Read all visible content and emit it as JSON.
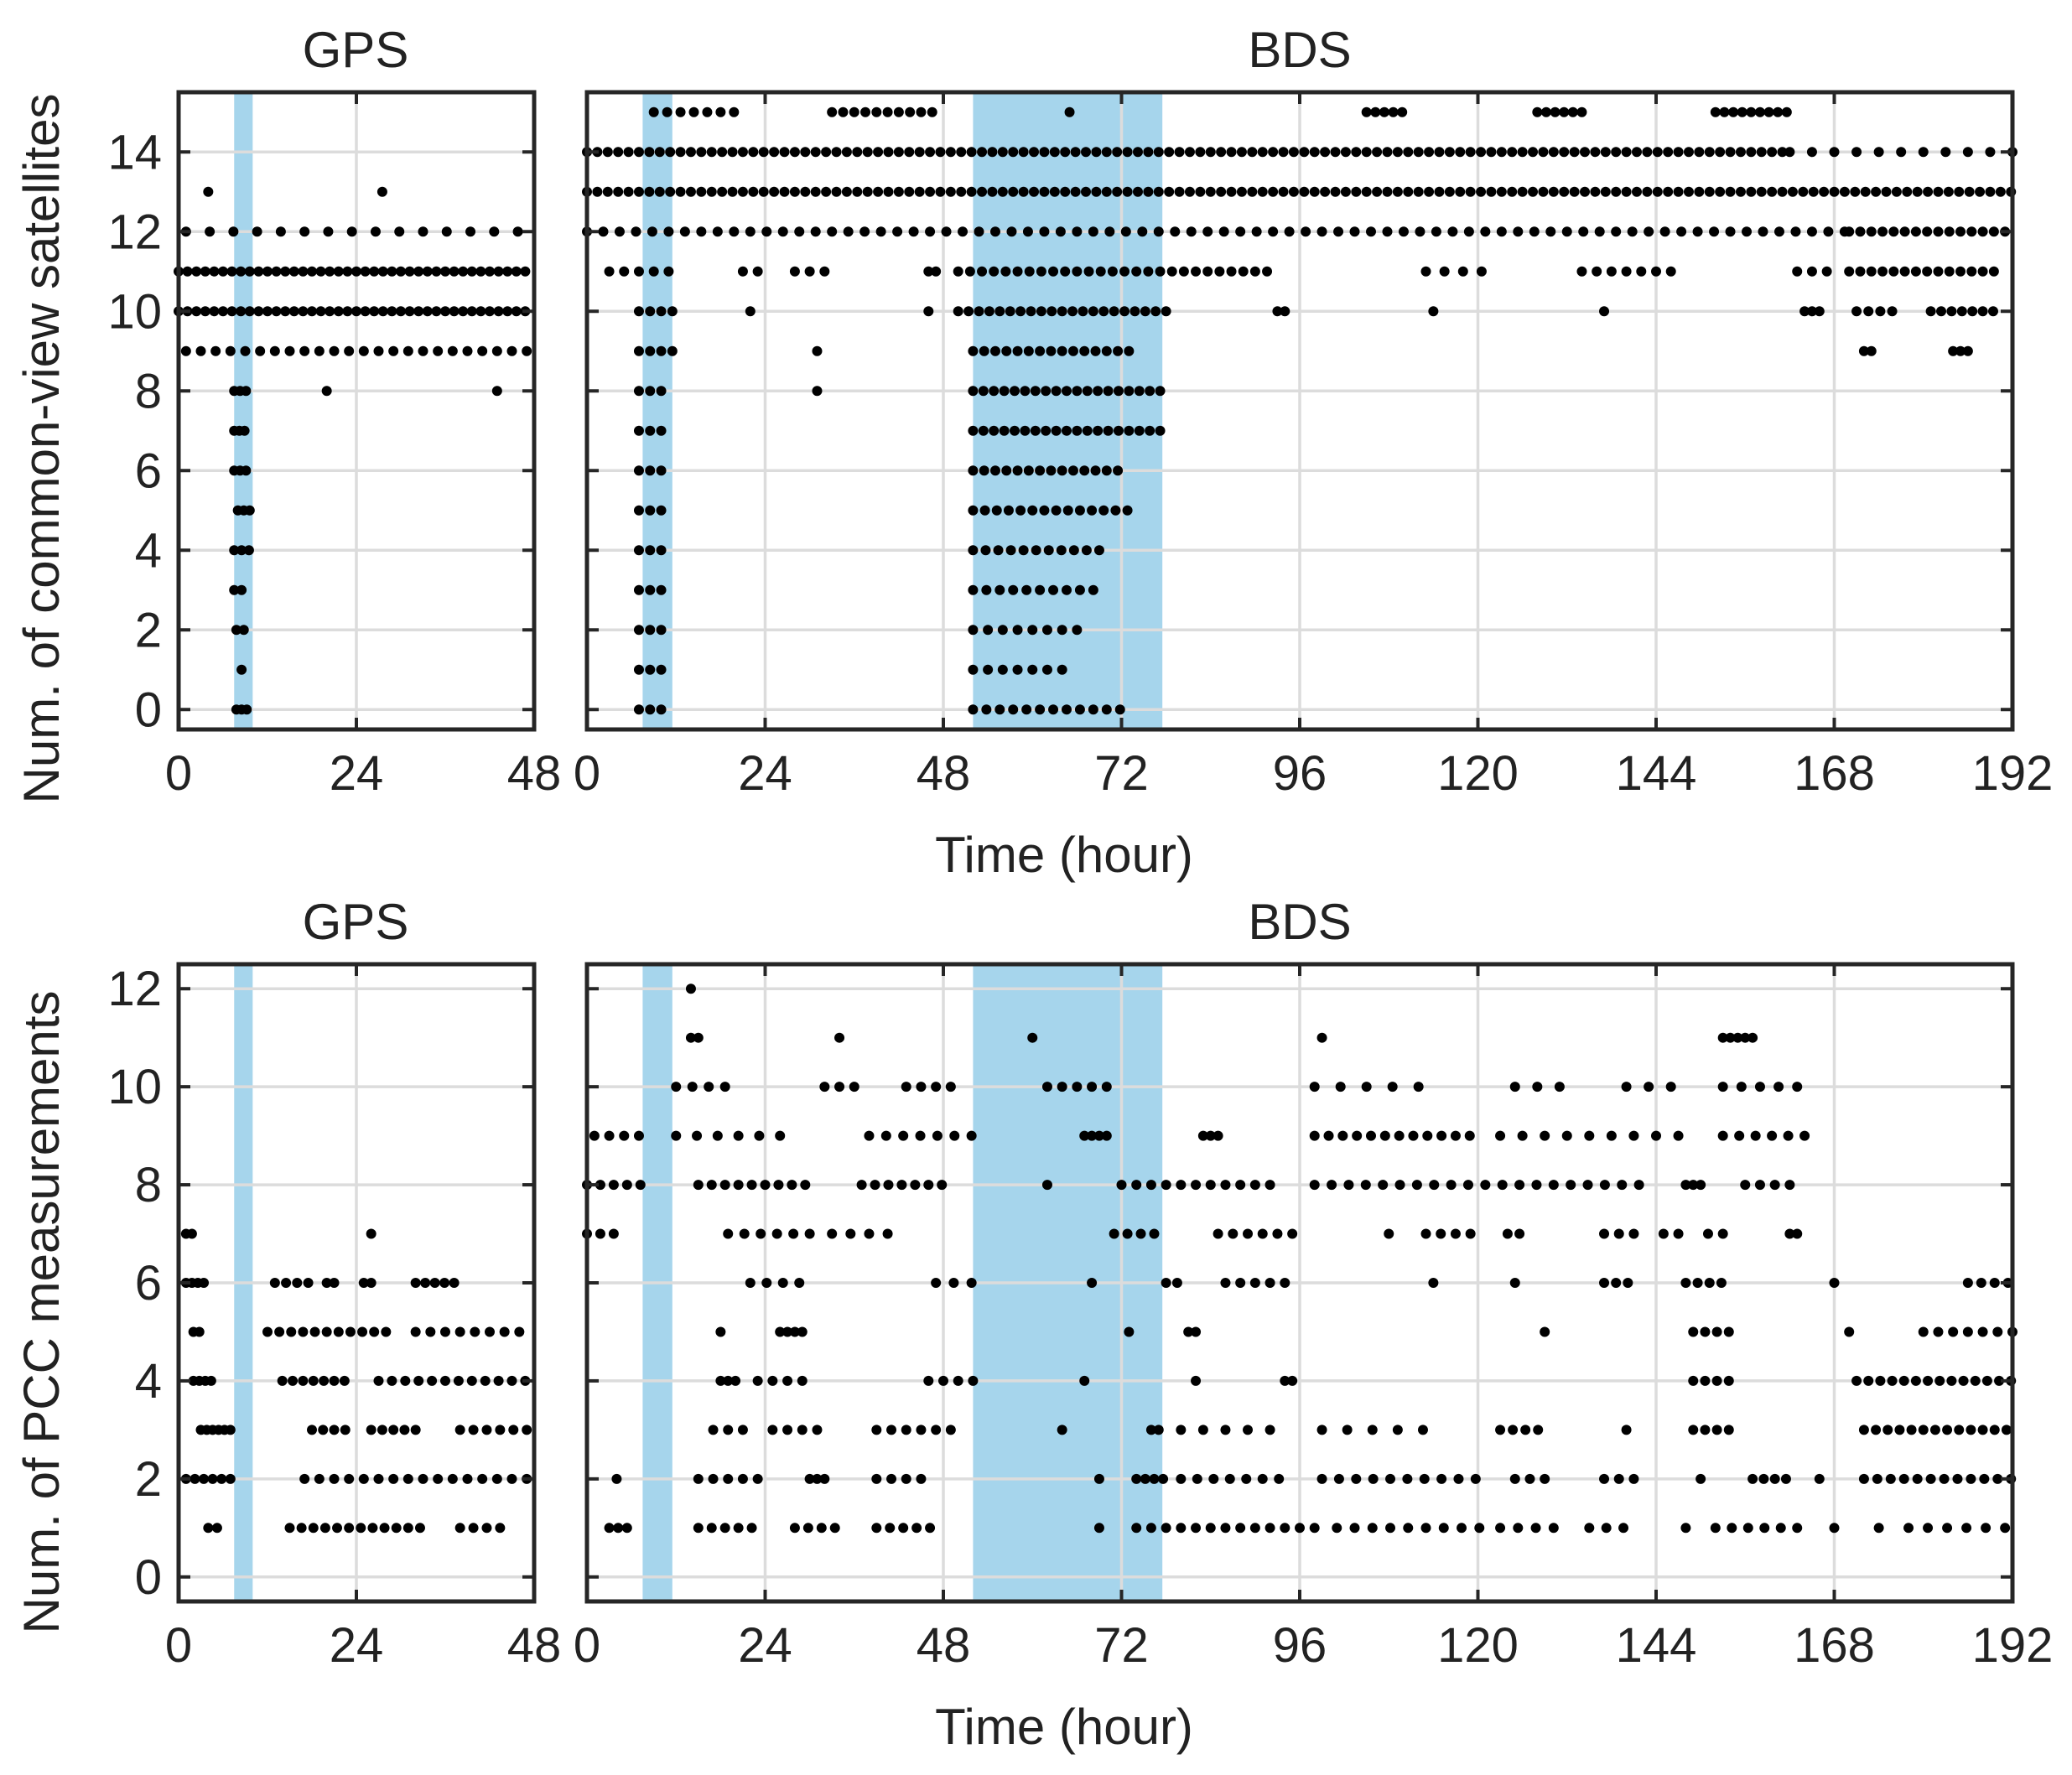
{
  "colors": {
    "highlight": "#a6d5ec",
    "dot": "#000000",
    "grid": "#dcdcdc",
    "axis": "#262626"
  },
  "rows": [
    {
      "ylabel": "Num. of common-view satellites",
      "xlabel": "Time (hour)"
    },
    {
      "ylabel": "Num. of PCC measurements",
      "xlabel": "Time (hour)"
    }
  ],
  "chart_data": [
    {
      "type": "scatter",
      "id": "sat-gps",
      "title": "GPS",
      "xlim": [
        0,
        48
      ],
      "ylim": [
        -0.5,
        15.5
      ],
      "xticks": [
        0,
        24,
        48
      ],
      "yticks": [
        0,
        2,
        4,
        6,
        8,
        10,
        12,
        14
      ],
      "highlights": [
        [
          7.5,
          10
        ]
      ],
      "dots": [
        [
          0,
          47.5,
          11,
          1.2
        ],
        [
          0,
          47.5,
          10,
          1.2
        ],
        [
          1,
          47,
          9,
          2.0
        ],
        [
          1,
          47,
          12,
          3.2
        ],
        [
          7.5,
          9.3,
          7,
          0.7
        ],
        [
          7.5,
          9.3,
          6,
          0.8
        ],
        [
          8,
          9.8,
          5,
          0.8
        ],
        [
          7.5,
          9.5,
          8,
          0.8
        ],
        [
          7.5,
          9.5,
          4,
          1.0
        ],
        [
          7.5,
          9.2,
          3,
          1.0
        ],
        [
          7.8,
          9.2,
          2,
          1.0
        ],
        [
          7.8,
          9.2,
          0,
          0.7
        ],
        [
          8.5,
          8.5,
          1,
          1.0
        ],
        [
          4,
          4,
          13,
          1
        ],
        [
          27.5,
          27.5,
          13,
          1
        ],
        [
          20,
          20,
          8,
          1
        ],
        [
          43,
          43,
          8,
          1
        ]
      ]
    },
    {
      "type": "scatter",
      "id": "sat-bds",
      "title": "BDS",
      "xlim": [
        0,
        192
      ],
      "ylim": [
        -0.5,
        15.5
      ],
      "xticks": [
        0,
        24,
        48,
        72,
        96,
        120,
        144,
        168,
        192
      ],
      "yticks": [
        0,
        2,
        4,
        6,
        8,
        10,
        12,
        14
      ],
      "highlights": [
        [
          7.5,
          11.5
        ],
        [
          52,
          77.5
        ]
      ],
      "dots": [
        [
          0,
          192,
          13,
          1.4
        ],
        [
          0,
          162,
          14,
          1.4
        ],
        [
          162,
          192,
          14,
          3
        ],
        [
          0,
          170,
          12,
          2.2
        ],
        [
          170,
          192,
          12,
          1.5
        ],
        [
          9,
          20,
          15,
          1.8
        ],
        [
          33,
          47,
          15,
          1.5
        ],
        [
          105,
          110,
          15,
          1.2
        ],
        [
          128,
          134,
          15,
          1.2
        ],
        [
          152,
          162,
          15,
          1.2
        ],
        [
          65,
          65,
          15,
          1
        ],
        [
          3,
          12,
          11,
          2
        ],
        [
          21,
          23,
          11,
          2
        ],
        [
          28,
          33,
          11,
          2
        ],
        [
          46,
          47,
          11,
          1
        ],
        [
          50,
          92,
          11,
          1.6
        ],
        [
          113,
          121,
          11,
          2.5
        ],
        [
          134,
          147,
          11,
          2
        ],
        [
          163,
          168,
          11,
          2
        ],
        [
          170,
          190,
          11,
          1.5
        ],
        [
          7,
          12,
          10,
          1.5
        ],
        [
          22,
          22,
          10,
          1
        ],
        [
          46,
          46,
          10,
          1
        ],
        [
          50,
          78,
          10,
          1.4
        ],
        [
          93,
          94,
          10,
          1
        ],
        [
          114,
          114,
          10,
          1
        ],
        [
          137,
          137,
          10,
          1
        ],
        [
          164,
          166,
          10,
          1
        ],
        [
          171,
          177,
          10,
          1.6
        ],
        [
          181,
          190,
          10,
          1.4
        ],
        [
          7,
          12,
          9,
          1.5
        ],
        [
          31,
          31,
          9,
          1
        ],
        [
          52,
          73,
          9,
          1.5
        ],
        [
          172,
          173,
          9,
          1
        ],
        [
          184,
          186,
          9,
          1
        ],
        [
          7,
          10,
          8,
          1.5
        ],
        [
          31,
          31,
          8,
          1
        ],
        [
          52,
          78,
          8,
          1.4
        ],
        [
          7,
          10,
          7,
          1.5
        ],
        [
          52,
          78,
          7,
          1.4
        ],
        [
          7,
          10,
          6,
          1.5
        ],
        [
          52,
          72,
          6,
          1.5
        ],
        [
          7,
          10,
          5,
          1.5
        ],
        [
          52,
          73,
          5,
          1.6
        ],
        [
          7,
          10,
          4,
          1.5
        ],
        [
          52,
          70,
          4,
          1.7
        ],
        [
          7,
          10,
          3,
          1.5
        ],
        [
          52,
          69,
          3,
          1.8
        ],
        [
          7,
          10,
          2,
          1.5
        ],
        [
          52,
          66,
          2,
          2
        ],
        [
          7,
          10,
          1,
          1.5
        ],
        [
          52,
          65,
          1,
          2
        ],
        [
          7,
          10,
          0,
          1.5
        ],
        [
          52,
          73,
          0,
          1.8
        ]
      ]
    },
    {
      "type": "scatter",
      "id": "pcc-gps",
      "title": "GPS",
      "xlim": [
        0,
        48
      ],
      "ylim": [
        -0.5,
        12.5
      ],
      "xticks": [
        0,
        24,
        48
      ],
      "yticks": [
        0,
        2,
        4,
        6,
        8,
        10,
        12
      ],
      "highlights": [
        [
          7.5,
          10
        ]
      ],
      "dots": [
        [
          1,
          2.5,
          7,
          0.8
        ],
        [
          26,
          26,
          7,
          1
        ],
        [
          1,
          4,
          6,
          0.8
        ],
        [
          13,
          18,
          6,
          1.5
        ],
        [
          20,
          21,
          6,
          1
        ],
        [
          25,
          26,
          6,
          1
        ],
        [
          32,
          38,
          6,
          1.3
        ],
        [
          2,
          3.5,
          5,
          0.8
        ],
        [
          12,
          28,
          5,
          1.6
        ],
        [
          32,
          47,
          5,
          2
        ],
        [
          2,
          5,
          4,
          0.8
        ],
        [
          14,
          23,
          4,
          1.4
        ],
        [
          27,
          47,
          4,
          1.8
        ],
        [
          3,
          7,
          3,
          0.8
        ],
        [
          18,
          23,
          3,
          1.5
        ],
        [
          26,
          33,
          3,
          1.5
        ],
        [
          38,
          47,
          3,
          1.8
        ],
        [
          1,
          7,
          2,
          1.2
        ],
        [
          17,
          47,
          2,
          2
        ],
        [
          4,
          6,
          1,
          1.2
        ],
        [
          15,
          33,
          1,
          1.6
        ],
        [
          38,
          44,
          1,
          1.8
        ]
      ]
    },
    {
      "type": "scatter",
      "id": "pcc-bds",
      "title": "BDS",
      "xlim": [
        0,
        192
      ],
      "ylim": [
        -0.5,
        12.5
      ],
      "xticks": [
        0,
        24,
        48,
        72,
        96,
        120,
        144,
        168,
        192
      ],
      "yticks": [
        0,
        2,
        4,
        6,
        8,
        10,
        12
      ],
      "highlights": [
        [
          7.5,
          11.5
        ],
        [
          52,
          77.5
        ]
      ],
      "dots": [
        [
          14,
          14,
          12,
          1
        ],
        [
          14,
          15,
          11,
          1
        ],
        [
          34,
          34,
          11,
          1
        ],
        [
          60,
          60,
          11,
          1
        ],
        [
          99,
          99,
          11,
          1
        ],
        [
          153,
          157,
          11,
          1
        ],
        [
          12,
          20,
          10,
          2.2
        ],
        [
          32,
          37,
          10,
          2
        ],
        [
          43,
          50,
          10,
          2
        ],
        [
          62,
          70,
          10,
          2
        ],
        [
          98,
          112,
          10,
          3.5
        ],
        [
          125,
          132,
          10,
          3
        ],
        [
          140,
          148,
          10,
          3
        ],
        [
          153,
          165,
          10,
          2.5
        ],
        [
          1,
          8,
          9,
          2
        ],
        [
          12,
          28,
          9,
          2.8
        ],
        [
          38,
          52,
          9,
          2.3
        ],
        [
          67,
          70,
          9,
          1
        ],
        [
          83,
          85,
          9,
          1
        ],
        [
          98,
          120,
          9,
          1.9
        ],
        [
          123,
          148,
          9,
          3
        ],
        [
          153,
          166,
          9,
          2.2
        ],
        [
          0,
          8,
          8,
          1.8
        ],
        [
          15,
          30,
          8,
          1.8
        ],
        [
          37,
          48,
          8,
          1.8
        ],
        [
          62,
          62,
          8,
          1
        ],
        [
          72,
          92,
          8,
          2
        ],
        [
          98,
          142,
          8,
          2.3
        ],
        [
          148,
          150,
          8,
          1
        ],
        [
          156,
          162,
          8,
          2
        ],
        [
          0,
          5,
          7,
          1.8
        ],
        [
          19,
          30,
          7,
          2.2
        ],
        [
          33,
          42,
          7,
          2.5
        ],
        [
          71,
          77,
          7,
          1.8
        ],
        [
          85,
          95,
          7,
          2
        ],
        [
          108,
          108,
          7,
          1
        ],
        [
          113,
          120,
          7,
          2
        ],
        [
          124,
          127,
          7,
          1.6
        ],
        [
          137,
          141,
          7,
          2
        ],
        [
          145,
          148,
          7,
          2
        ],
        [
          151,
          154,
          7,
          2
        ],
        [
          162,
          163,
          7,
          1
        ],
        [
          22,
          30,
          6,
          2.2
        ],
        [
          47,
          52,
          6,
          2.4
        ],
        [
          68,
          68,
          6,
          1
        ],
        [
          78,
          80,
          6,
          1.5
        ],
        [
          86,
          95,
          6,
          2
        ],
        [
          114,
          114,
          6,
          1
        ],
        [
          125,
          125,
          6,
          1
        ],
        [
          137,
          141,
          6,
          1.6
        ],
        [
          148,
          154,
          6,
          1.6
        ],
        [
          168,
          168,
          6,
          1
        ],
        [
          186,
          192,
          6,
          1.8
        ],
        [
          18,
          18,
          5,
          1
        ],
        [
          26,
          29,
          5,
          1
        ],
        [
          73,
          73,
          5,
          1
        ],
        [
          81,
          82,
          5,
          1
        ],
        [
          129,
          129,
          5,
          1
        ],
        [
          149,
          154,
          5,
          1.6
        ],
        [
          170,
          170,
          5,
          1
        ],
        [
          180,
          192,
          5,
          2
        ],
        [
          18,
          20,
          4,
          1
        ],
        [
          23,
          30,
          4,
          2
        ],
        [
          46,
          52,
          4,
          2
        ],
        [
          67,
          67,
          4,
          1
        ],
        [
          82,
          82,
          4,
          1
        ],
        [
          94,
          95,
          4,
          1
        ],
        [
          149,
          154,
          4,
          1.6
        ],
        [
          171,
          192,
          4,
          1.6
        ],
        [
          17,
          22,
          3,
          2
        ],
        [
          25,
          31,
          3,
          2
        ],
        [
          39,
          50,
          3,
          2
        ],
        [
          64,
          64,
          3,
          1
        ],
        [
          76,
          77,
          3,
          1
        ],
        [
          80,
          94,
          3,
          3
        ],
        [
          99,
          114,
          3,
          3.4
        ],
        [
          123,
          129,
          3,
          1.7
        ],
        [
          140,
          140,
          3,
          1
        ],
        [
          149,
          154,
          3,
          1.6
        ],
        [
          172,
          192,
          3,
          1.6
        ],
        [
          4,
          4,
          2,
          1
        ],
        [
          15,
          24,
          2,
          2
        ],
        [
          30,
          32,
          2,
          1
        ],
        [
          39,
          46,
          2,
          2
        ],
        [
          69,
          69,
          2,
          1
        ],
        [
          74,
          78,
          2,
          1.2
        ],
        [
          80,
          95,
          2,
          2.2
        ],
        [
          99,
          120,
          2,
          2.3
        ],
        [
          125,
          130,
          2,
          2
        ],
        [
          137,
          141,
          2,
          2
        ],
        [
          150,
          150,
          2,
          1
        ],
        [
          157,
          162,
          2,
          1.5
        ],
        [
          166,
          166,
          2,
          1
        ],
        [
          172,
          192,
          2,
          1.8
        ],
        [
          3,
          6,
          1,
          1.2
        ],
        [
          15,
          23,
          1,
          1.8
        ],
        [
          28,
          35,
          1,
          1.8
        ],
        [
          39,
          47,
          1,
          1.8
        ],
        [
          69,
          69,
          1,
          1
        ],
        [
          74,
          98,
          1,
          2
        ],
        [
          101,
          121,
          1,
          2.4
        ],
        [
          123,
          132,
          1,
          2.4
        ],
        [
          135,
          140,
          1,
          2.3
        ],
        [
          148,
          148,
          1,
          1
        ],
        [
          152,
          164,
          1,
          2.2
        ],
        [
          168,
          168,
          1,
          1
        ],
        [
          174,
          174,
          1,
          1
        ],
        [
          178,
          192,
          1,
          2.6
        ]
      ]
    }
  ],
  "note": "dots entries are [x_start, x_end, y, spacing] in data units: a run of markers from x_start to x_end at value y"
}
